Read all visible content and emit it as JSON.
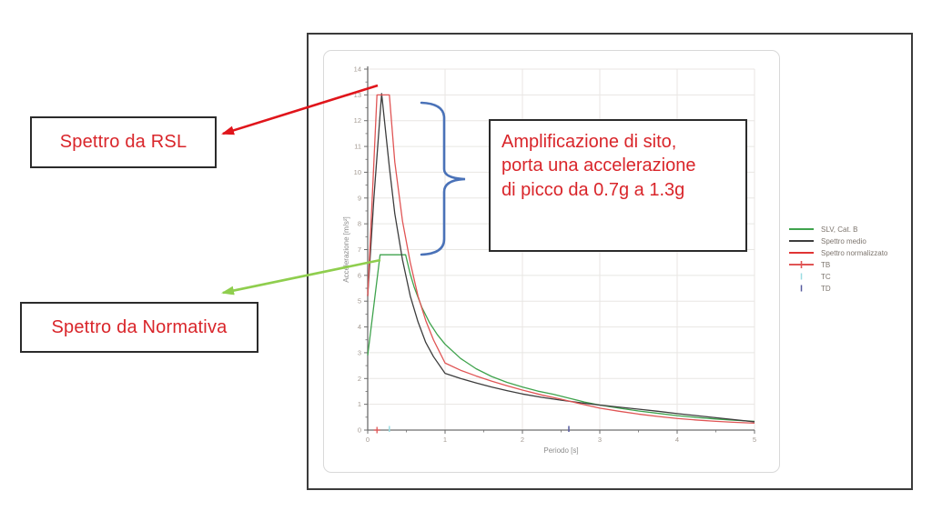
{
  "annotations": {
    "rsl_label": "Spettro da RSL",
    "normativa_label": "Spettro da Normativa",
    "amplification_text": "Amplificazione di sito,\nporta una accelerazione\ndi picco da 0.7g a 1.3g",
    "text_color": "#d9252a",
    "red_arrow_color": "#e0151b",
    "green_arrow_color": "#8fce4e",
    "brace_color": "#4a72b8"
  },
  "chart_data": {
    "type": "line",
    "xlabel": "Periodo [s]",
    "ylabel": "Accelerazione [m/s²]",
    "xlim": [
      0,
      5
    ],
    "ylim": [
      0,
      14
    ],
    "x_ticks": [
      0,
      1,
      2,
      3,
      4,
      5
    ],
    "y_ticks": [
      0,
      1,
      2,
      3,
      4,
      5,
      6,
      7,
      8,
      9,
      10,
      11,
      12,
      13,
      14
    ],
    "grid": true,
    "legend_position": "right-outside",
    "colors": {
      "grid": "#e8e6e3",
      "axis": "#6e6e6e",
      "tick_label": "#a39a92",
      "axis_title": "#8c8c8c"
    },
    "series": [
      {
        "name": "SLV, Cat. B",
        "color": "#3fa34d",
        "points": [
          [
            0,
            2.9
          ],
          [
            0.16,
            6.8
          ],
          [
            0.49,
            6.8
          ],
          [
            0.55,
            6.05
          ],
          [
            0.6,
            5.55
          ],
          [
            0.7,
            4.76
          ],
          [
            0.8,
            4.16
          ],
          [
            0.9,
            3.7
          ],
          [
            1,
            3.33
          ],
          [
            1.2,
            2.78
          ],
          [
            1.4,
            2.38
          ],
          [
            1.6,
            2.08
          ],
          [
            1.8,
            1.85
          ],
          [
            2,
            1.67
          ],
          [
            2.2,
            1.51
          ],
          [
            2.4,
            1.39
          ],
          [
            2.6,
            1.24
          ],
          [
            2.8,
            1.09
          ],
          [
            3,
            0.97
          ],
          [
            3.25,
            0.85
          ],
          [
            3.5,
            0.74
          ],
          [
            3.75,
            0.65
          ],
          [
            4,
            0.56
          ],
          [
            4.25,
            0.49
          ],
          [
            4.5,
            0.43
          ],
          [
            4.75,
            0.38
          ],
          [
            5,
            0.34
          ]
        ]
      },
      {
        "name": "Spettro medio",
        "color": "#3d3d3d",
        "points": [
          [
            0,
            5.2
          ],
          [
            0.08,
            9.0
          ],
          [
            0.18,
            13.05
          ],
          [
            0.28,
            10.2
          ],
          [
            0.35,
            8.4
          ],
          [
            0.45,
            6.6
          ],
          [
            0.55,
            5.2
          ],
          [
            0.65,
            4.2
          ],
          [
            0.75,
            3.4
          ],
          [
            0.85,
            2.85
          ],
          [
            1,
            2.2
          ],
          [
            1.2,
            2.0
          ],
          [
            1.4,
            1.83
          ],
          [
            1.6,
            1.67
          ],
          [
            1.8,
            1.53
          ],
          [
            2,
            1.4
          ],
          [
            2.25,
            1.27
          ],
          [
            2.5,
            1.16
          ],
          [
            2.75,
            1.06
          ],
          [
            3,
            0.97
          ],
          [
            3.25,
            0.89
          ],
          [
            3.5,
            0.81
          ],
          [
            3.75,
            0.73
          ],
          [
            4,
            0.64
          ],
          [
            4.25,
            0.56
          ],
          [
            4.5,
            0.48
          ],
          [
            4.75,
            0.4
          ],
          [
            5,
            0.32
          ]
        ]
      },
      {
        "name": "Spettro normalizzato",
        "color": "#e05555",
        "points": [
          [
            0,
            5.2
          ],
          [
            0.12,
            13
          ],
          [
            0.28,
            13
          ],
          [
            0.35,
            10.4
          ],
          [
            0.45,
            8.1
          ],
          [
            0.55,
            6.5
          ],
          [
            0.65,
            5.2
          ],
          [
            0.75,
            4.25
          ],
          [
            0.85,
            3.5
          ],
          [
            1,
            2.6
          ],
          [
            1.2,
            2.32
          ],
          [
            1.4,
            2.1
          ],
          [
            1.6,
            1.9
          ],
          [
            1.8,
            1.72
          ],
          [
            2,
            1.55
          ],
          [
            2.25,
            1.36
          ],
          [
            2.5,
            1.2
          ],
          [
            2.75,
            1.02
          ],
          [
            3,
            0.85
          ],
          [
            3.25,
            0.73
          ],
          [
            3.5,
            0.62
          ],
          [
            3.75,
            0.53
          ],
          [
            4,
            0.45
          ],
          [
            4.25,
            0.39
          ],
          [
            4.5,
            0.34
          ],
          [
            4.75,
            0.3
          ],
          [
            5,
            0.27
          ]
        ]
      }
    ],
    "axis_markers": [
      {
        "name": "TB",
        "x": 0.12,
        "color": "#e05555",
        "shape": "plus"
      },
      {
        "name": "TC",
        "x": 0.28,
        "color": "#9adce2",
        "shape": "vtick"
      },
      {
        "name": "TD",
        "x": 2.6,
        "color": "#565a9e",
        "shape": "vtick"
      }
    ],
    "legend": [
      {
        "label": "SLV, Cat. B",
        "swatch": "line",
        "color": "#3fa34d"
      },
      {
        "label": "Spettro medio",
        "swatch": "line",
        "color": "#3d3d3d"
      },
      {
        "label": "Spettro normalizzato",
        "swatch": "line",
        "color": "#e03434"
      },
      {
        "label": "TB",
        "swatch": "line-plus",
        "color": "#e05555"
      },
      {
        "label": "TC",
        "swatch": "vtick",
        "color": "#9adce2"
      },
      {
        "label": "TD",
        "swatch": "vtick",
        "color": "#565a9e"
      }
    ]
  }
}
